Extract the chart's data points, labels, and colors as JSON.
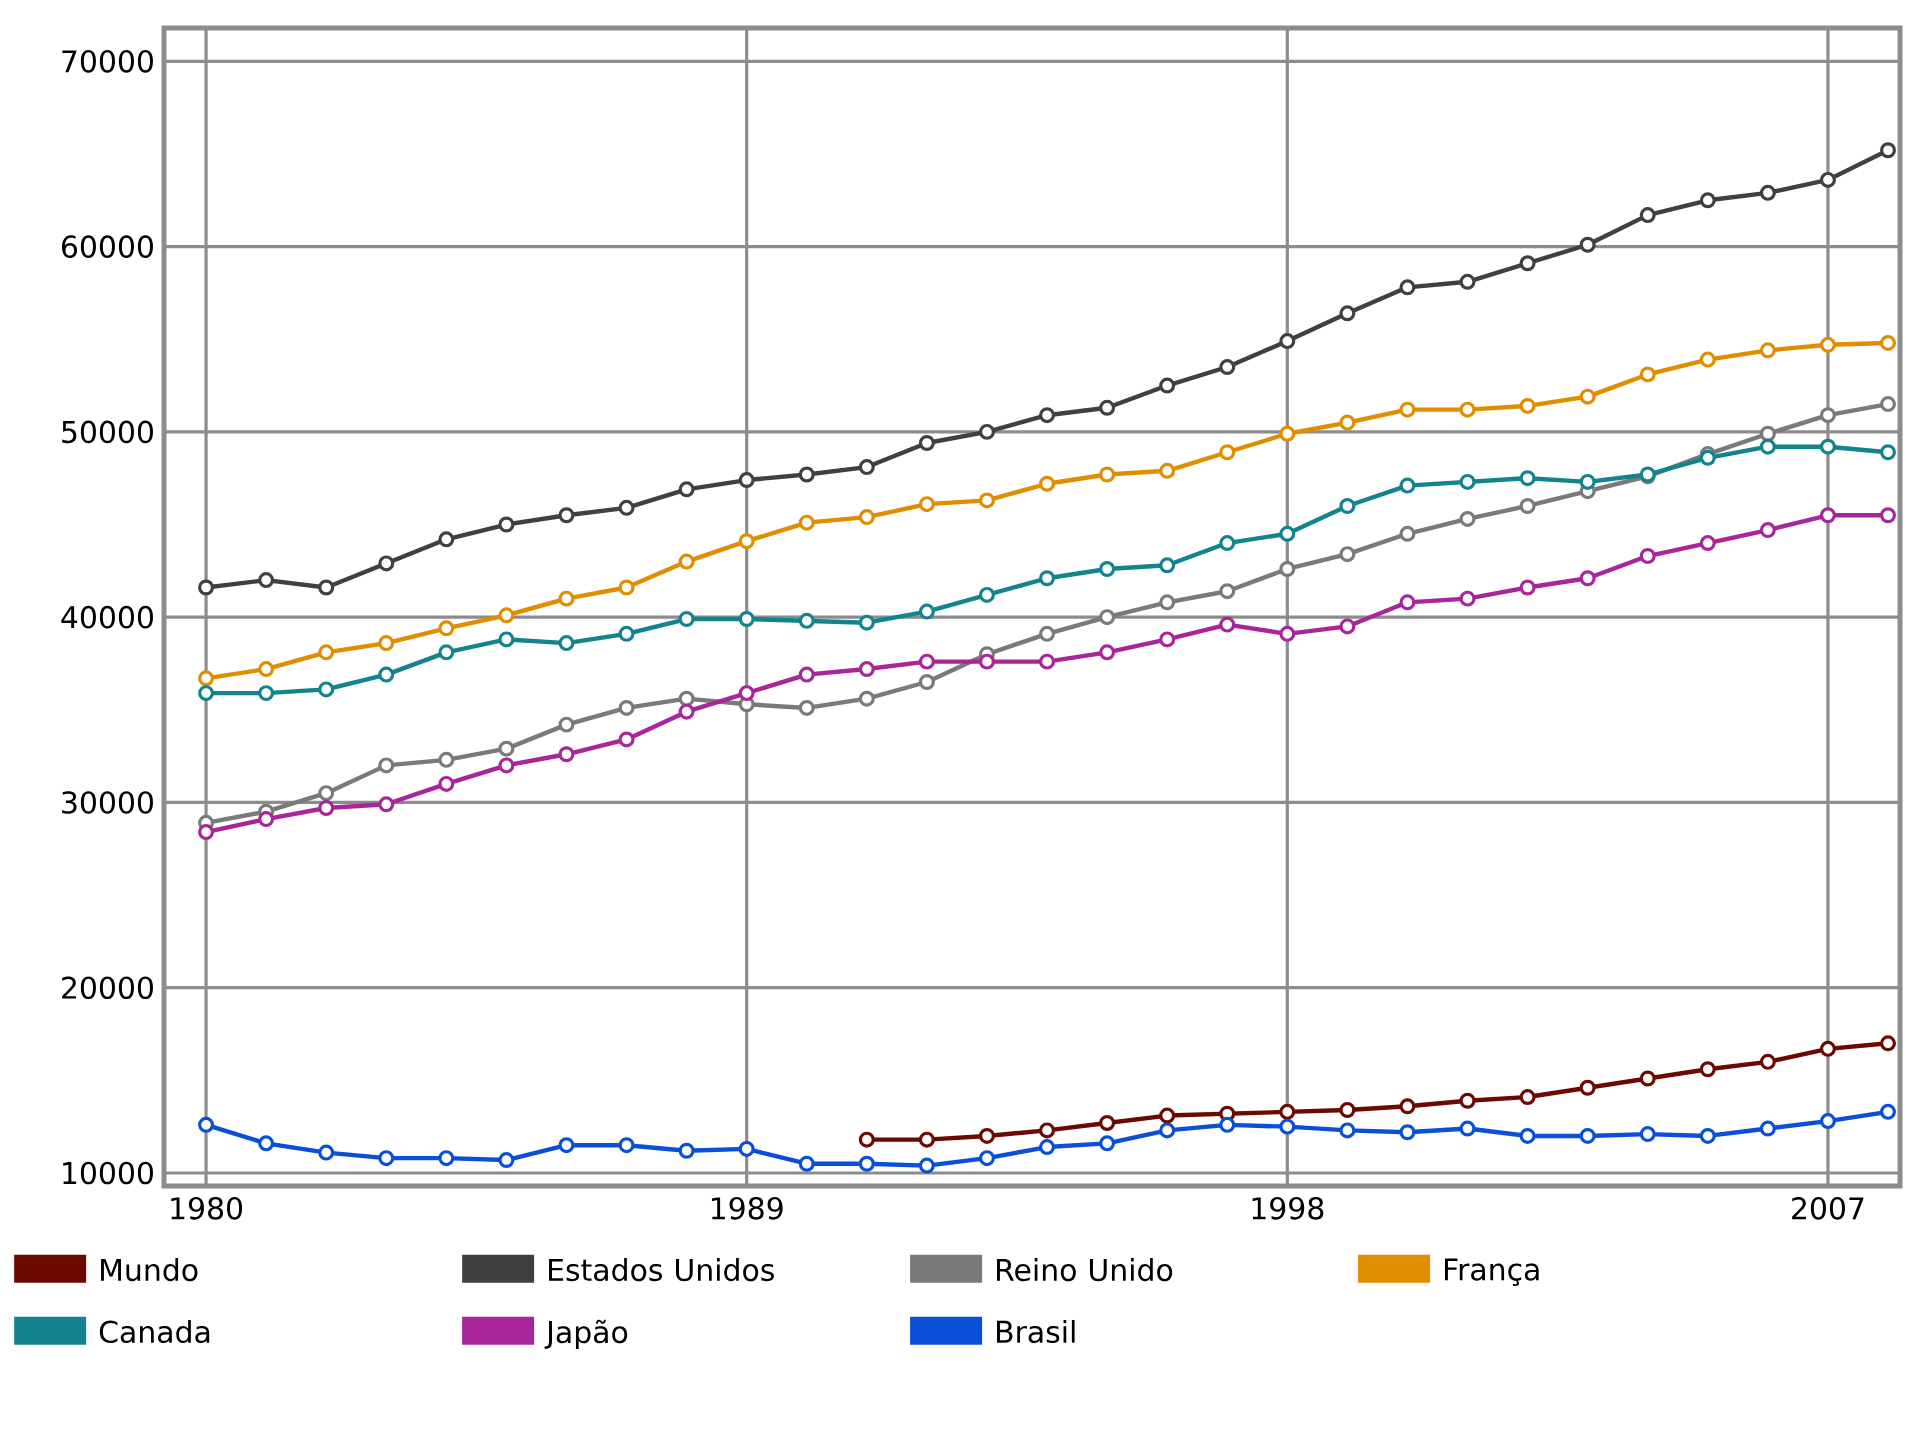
{
  "chart_data": {
    "type": "line",
    "x": [
      1980,
      1981,
      1982,
      1983,
      1984,
      1985,
      1986,
      1987,
      1988,
      1989,
      1990,
      1991,
      1992,
      1993,
      1994,
      1995,
      1996,
      1997,
      1998,
      1999,
      2000,
      2001,
      2002,
      2003,
      2004,
      2005,
      2006,
      2007,
      2008
    ],
    "series": [
      {
        "name": "Mundo",
        "color": "#6b0a00",
        "values": [
          null,
          null,
          null,
          null,
          null,
          null,
          null,
          null,
          null,
          null,
          null,
          11800,
          11800,
          12000,
          12300,
          12700,
          13100,
          13200,
          13300,
          13400,
          13600,
          13900,
          14100,
          14600,
          15100,
          15600,
          16000,
          16700,
          17000
        ]
      },
      {
        "name": "Estados Unidos",
        "color": "#404040",
        "values": [
          41600,
          42000,
          41600,
          42900,
          44200,
          45000,
          45500,
          45900,
          46900,
          47400,
          47700,
          48100,
          49400,
          50000,
          50900,
          51300,
          52500,
          53500,
          54900,
          56400,
          57800,
          58100,
          59100,
          60100,
          61700,
          62500,
          62900,
          63600,
          65200
        ]
      },
      {
        "name": "Reino Unido",
        "color": "#7a7a7a",
        "values": [
          28900,
          29500,
          30500,
          32000,
          32300,
          32900,
          34200,
          35100,
          35600,
          35300,
          35100,
          35600,
          36500,
          38000,
          39100,
          40000,
          40800,
          41400,
          42600,
          43400,
          44500,
          45300,
          46000,
          46800,
          47600,
          48800,
          49900,
          50900,
          51500
        ]
      },
      {
        "name": "França",
        "color": "#e08e00",
        "values": [
          36700,
          37200,
          38100,
          38600,
          39400,
          40100,
          41000,
          41600,
          43000,
          44100,
          45100,
          45400,
          46100,
          46300,
          47200,
          47700,
          47900,
          48900,
          49900,
          50500,
          51200,
          51200,
          51400,
          51900,
          53100,
          53900,
          54400,
          54700,
          54800
        ]
      },
      {
        "name": "Canada",
        "color": "#13848e",
        "values": [
          35900,
          35900,
          36100,
          36900,
          38100,
          38800,
          38600,
          39100,
          39900,
          39900,
          39800,
          39700,
          40300,
          41200,
          42100,
          42600,
          42800,
          44000,
          44500,
          46000,
          47100,
          47300,
          47500,
          47300,
          47700,
          48600,
          49200,
          49200,
          48900
        ]
      },
      {
        "name": "Japão",
        "color": "#a8259a",
        "values": [
          28400,
          29100,
          29700,
          29900,
          31000,
          32000,
          32600,
          33400,
          34900,
          35900,
          36900,
          37200,
          37600,
          37600,
          37600,
          38100,
          38800,
          39600,
          39100,
          39500,
          40800,
          41000,
          41600,
          42100,
          43300,
          44000,
          44700,
          45500,
          45500
        ]
      },
      {
        "name": "Brasil",
        "color": "#0a4fd8",
        "values": [
          12600,
          11600,
          11100,
          10800,
          10800,
          10700,
          11500,
          11500,
          11200,
          11300,
          10500,
          10500,
          10400,
          10800,
          11400,
          11600,
          12300,
          12600,
          12500,
          12300,
          12200,
          12400,
          12000,
          12000,
          12100,
          12000,
          12400,
          12800,
          13300
        ]
      }
    ],
    "xlim": [
      1979.3,
      2008.2
    ],
    "ylim": [
      9300,
      71800
    ],
    "xticks": [
      1980,
      1989,
      1998,
      2007
    ],
    "yticks": [
      10000,
      20000,
      30000,
      40000,
      50000,
      60000,
      70000
    ],
    "grid": true,
    "legend": "bottom",
    "marker": "circle",
    "line_style": "solid"
  }
}
